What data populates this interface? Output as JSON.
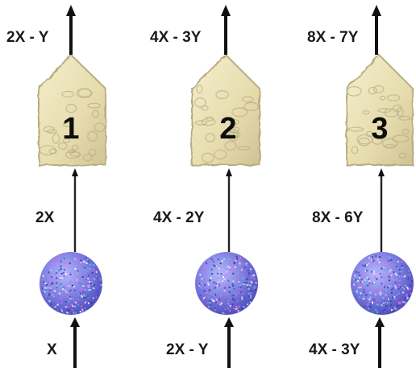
{
  "stages": [
    {
      "number": "1",
      "input_label": "X",
      "middle_label": "2X",
      "output_label": "2X - Y"
    },
    {
      "number": "2",
      "input_label": "2X - Y",
      "middle_label": "4X - 2Y",
      "output_label": "4X - 3Y"
    },
    {
      "number": "3",
      "input_label": "4X - 3Y",
      "middle_label": "8X - 6Y",
      "output_label": "8X - 7Y"
    }
  ],
  "colors": {
    "arrow": "#111111",
    "stone": "#e9e0b8",
    "stone_shadow": "#b8ad82",
    "sphere_base": "#7b7be0",
    "sphere_speckle_1": "#e26be0",
    "sphere_speckle_2": "#58c7e6",
    "sphere_speckle_3": "#f2f2ff",
    "sphere_speckle_4": "#3a3aa8"
  },
  "icons": {
    "stone": "stone-pentagon-icon",
    "sphere": "speckled-sphere-icon"
  }
}
